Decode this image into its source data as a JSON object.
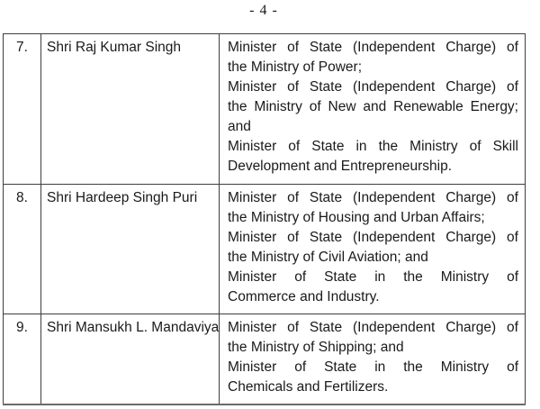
{
  "page": {
    "header": "- 4 -"
  },
  "colors": {
    "text": "#1a1a1a",
    "border": "#3e3e3e",
    "border_bottom": "#6a6a6a",
    "background": "#ffffff"
  },
  "table": {
    "rows": [
      {
        "sno": "7.",
        "name": "Shri Raj Kumar Singh",
        "portfolio_lines": [
          {
            "text": "Minister of State (Independent Charge) of",
            "stretch": true
          },
          {
            "text": "the Ministry of Power;",
            "stretch": false
          },
          {
            "text": "Minister of State (Independent Charge) of",
            "stretch": true
          },
          {
            "text": "the Ministry of New and Renewable Energy;",
            "stretch": true
          },
          {
            "text": "and",
            "stretch": false
          },
          {
            "text": "Minister of State in the Ministry of Skill",
            "stretch": true
          },
          {
            "text": "Development and Entrepreneurship.",
            "stretch": false
          }
        ]
      },
      {
        "sno": "8.",
        "name": "Shri Hardeep Singh Puri",
        "portfolio_lines": [
          {
            "text": "Minister of State (Independent Charge) of",
            "stretch": true
          },
          {
            "text": "the Ministry of Housing and Urban Affairs;",
            "stretch": false
          },
          {
            "text": "Minister of State (Independent Charge) of",
            "stretch": true
          },
          {
            "text": "the Ministry of Civil Aviation; and",
            "stretch": false
          },
          {
            "text": "Minister of State in the Ministry of",
            "stretch": true
          },
          {
            "text": "Commerce and Industry.",
            "stretch": false
          }
        ]
      },
      {
        "sno": "9.",
        "name": "Shri Mansukh L. Mandaviya",
        "portfolio_lines": [
          {
            "text": "Minister of State (Independent Charge) of",
            "stretch": true
          },
          {
            "text": "the Ministry of Shipping; and",
            "stretch": false
          },
          {
            "text": "Minister of State in the Ministry of",
            "stretch": true
          },
          {
            "text": "Chemicals and Fertilizers.",
            "stretch": false
          }
        ]
      }
    ]
  }
}
